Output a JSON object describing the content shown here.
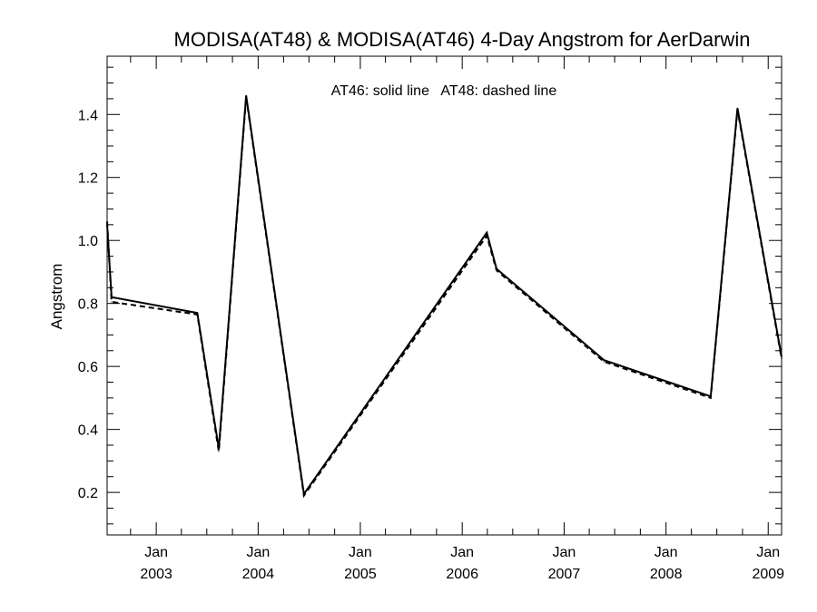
{
  "chart_data": {
    "type": "line",
    "title": "MODISA(AT48) & MODISA(AT46) 4-Day Angstrom for AerDarwin",
    "annotation": "AT46: solid line   AT48: dashed line",
    "xlabel": "",
    "ylabel": "Angstrom",
    "xlim": [
      "2002-07-09",
      "2009-02-18"
    ],
    "ylim": [
      0.065,
      1.585
    ],
    "yticks": [
      0.2,
      0.4,
      0.6,
      0.8,
      1.0,
      1.2,
      1.4
    ],
    "ytick_labels": [
      "0.2",
      "0.4",
      "0.6",
      "0.8",
      "1.0",
      "1.2",
      "1.4"
    ],
    "xticks": [
      {
        "date": "2003-01-01",
        "month": "Jan",
        "year": "2003"
      },
      {
        "date": "2004-01-01",
        "month": "Jan",
        "year": "2004"
      },
      {
        "date": "2005-01-01",
        "month": "Jan",
        "year": "2005"
      },
      {
        "date": "2006-01-01",
        "month": "Jan",
        "year": "2006"
      },
      {
        "date": "2007-01-01",
        "month": "Jan",
        "year": "2007"
      },
      {
        "date": "2008-01-01",
        "month": "Jan",
        "year": "2008"
      },
      {
        "date": "2009-01-01",
        "month": "Jan",
        "year": "2009"
      }
    ],
    "grid": false,
    "series": [
      {
        "name": "AT46",
        "style": "solid",
        "color": "#000000",
        "points": [
          {
            "x": "2002-07-09",
            "y": 1.05
          },
          {
            "x": "2002-07-25",
            "y": 0.82
          },
          {
            "x": "2003-05-28",
            "y": 0.77
          },
          {
            "x": "2003-08-13",
            "y": 0.34
          },
          {
            "x": "2003-11-19",
            "y": 1.46
          },
          {
            "x": "2004-06-13",
            "y": 0.195
          },
          {
            "x": "2006-03-30",
            "y": 1.025
          },
          {
            "x": "2006-05-04",
            "y": 0.91
          },
          {
            "x": "2007-05-24",
            "y": 0.62
          },
          {
            "x": "2008-06-09",
            "y": 0.505
          },
          {
            "x": "2008-09-13",
            "y": 1.42
          },
          {
            "x": "2009-02-18",
            "y": 0.63
          }
        ]
      },
      {
        "name": "AT48",
        "style": "dashed",
        "color": "#000000",
        "points": [
          {
            "x": "2002-07-09",
            "y": 1.06
          },
          {
            "x": "2002-07-25",
            "y": 0.805
          },
          {
            "x": "2003-05-28",
            "y": 0.765
          },
          {
            "x": "2003-08-13",
            "y": 0.33
          },
          {
            "x": "2003-11-19",
            "y": 1.455
          },
          {
            "x": "2004-06-13",
            "y": 0.19
          },
          {
            "x": "2006-03-30",
            "y": 1.015
          },
          {
            "x": "2006-05-04",
            "y": 0.905
          },
          {
            "x": "2007-05-24",
            "y": 0.615
          },
          {
            "x": "2008-06-09",
            "y": 0.5
          },
          {
            "x": "2008-09-13",
            "y": 1.415
          },
          {
            "x": "2009-02-18",
            "y": 0.625
          }
        ]
      }
    ]
  }
}
